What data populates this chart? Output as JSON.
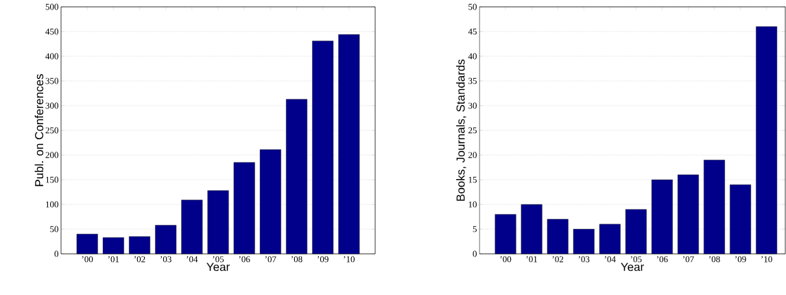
{
  "chart_data": [
    {
      "type": "bar",
      "categories": [
        "’00",
        "’01",
        "’02",
        "’03",
        "’04",
        "’05",
        "’06",
        "’07",
        "’08",
        "’09",
        "’10"
      ],
      "values": [
        40,
        33,
        35,
        58,
        109,
        128,
        185,
        211,
        313,
        431,
        444
      ],
      "color": "#00008b",
      "xlabel": "Year",
      "ylabel": "Publ. on Conferences",
      "ylim": [
        0,
        500
      ],
      "yticks": [
        0,
        50,
        100,
        150,
        200,
        250,
        300,
        350,
        400,
        450,
        500
      ],
      "grid": "y"
    },
    {
      "type": "bar",
      "categories": [
        "’00",
        "’01",
        "’02",
        "’03",
        "’04",
        "’05",
        "’06",
        "’07",
        "’08",
        "’09",
        "’10"
      ],
      "values": [
        8,
        10,
        7,
        5,
        6,
        9,
        15,
        16,
        19,
        14,
        46
      ],
      "color": "#00008b",
      "xlabel": "Year",
      "ylabel": "Books, Journals, Standards",
      "ylim": [
        0,
        50
      ],
      "yticks": [
        0,
        5,
        10,
        15,
        20,
        25,
        30,
        35,
        40,
        45,
        50
      ],
      "grid": "y"
    }
  ]
}
